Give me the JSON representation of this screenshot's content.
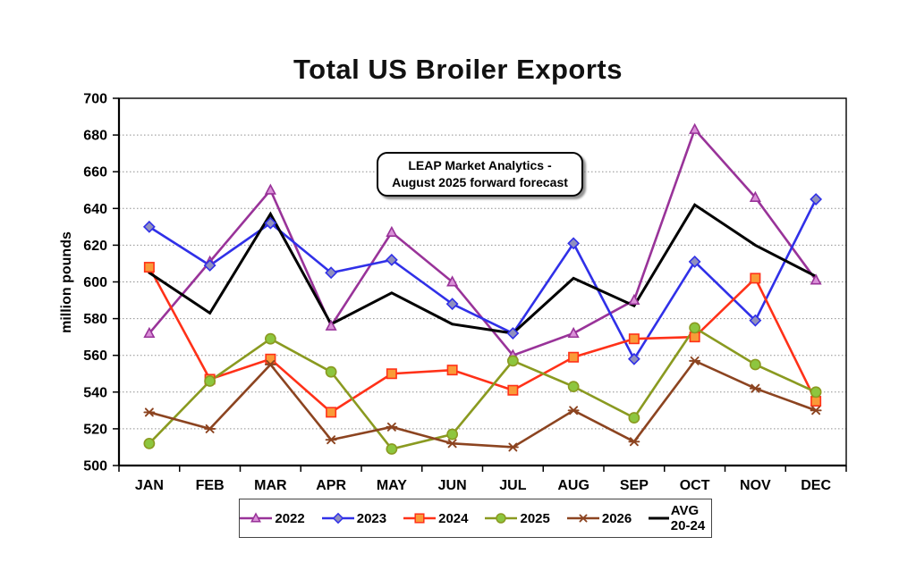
{
  "annotation": {
    "line1": "LEAP Market Analytics -",
    "line2": "August 2025 forward forecast"
  },
  "chart_data": {
    "type": "line",
    "title": "Total US Broiler Exports",
    "xlabel": "",
    "ylabel": "million pounds",
    "ylim": [
      500,
      700
    ],
    "ytick_step": 20,
    "grid": true,
    "grid_color": "#909090",
    "legend_position": "bottom",
    "categories": [
      "JAN",
      "FEB",
      "MAR",
      "APR",
      "MAY",
      "JUN",
      "JUL",
      "AUG",
      "SEP",
      "OCT",
      "NOV",
      "DEC"
    ],
    "series": [
      {
        "name": "2022",
        "color": "#993399",
        "marker": "triangle",
        "marker_fill": "#DA90D8",
        "values": [
          572,
          611,
          650,
          576,
          627,
          600,
          560,
          572,
          590,
          683,
          646,
          601
        ]
      },
      {
        "name": "2023",
        "color": "#3030E8",
        "marker": "diamond",
        "marker_fill": "#9090BE",
        "values": [
          630,
          609,
          632,
          605,
          612,
          588,
          572,
          621,
          558,
          611,
          579,
          645
        ]
      },
      {
        "name": "2024",
        "color": "#FF3118",
        "marker": "square",
        "marker_fill": "#F99B38",
        "values": [
          608,
          547,
          558,
          529,
          550,
          552,
          541,
          559,
          569,
          570,
          602,
          535
        ]
      },
      {
        "name": "2025",
        "color": "#8A9A20",
        "marker": "circle",
        "marker_fill": "#8DC63F",
        "values": [
          512,
          546,
          569,
          551,
          509,
          517,
          557,
          543,
          526,
          575,
          555,
          540
        ]
      },
      {
        "name": "2026",
        "color": "#8C4420",
        "marker": "asterisk",
        "marker_fill": "#8C4420",
        "values": [
          529,
          520,
          555,
          514,
          521,
          512,
          510,
          530,
          513,
          557,
          542,
          530
        ]
      },
      {
        "name": "AVG 20-24",
        "color": "#000000",
        "marker": "none",
        "marker_fill": "#000000",
        "values": [
          605,
          583,
          637,
          577,
          594,
          577,
          572,
          602,
          587,
          642,
          620,
          603
        ]
      }
    ]
  }
}
